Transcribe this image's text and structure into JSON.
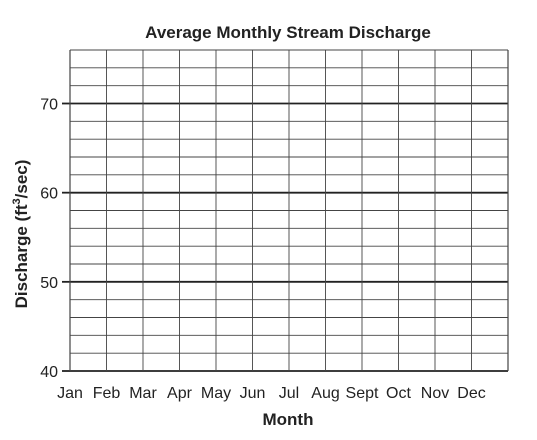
{
  "chart_data": {
    "type": "line",
    "title": "Average Monthly Stream Discharge",
    "xlabel": "Month",
    "ylabel": {
      "prefix": "Discharge (ft",
      "superscript": "3",
      "suffix": "/sec)"
    },
    "categories": [
      "Jan",
      "Feb",
      "Mar",
      "Apr",
      "May",
      "Jun",
      "Jul",
      "Aug",
      "Sept",
      "Oct",
      "Nov",
      "Dec"
    ],
    "series": [],
    "ylim": [
      40,
      76
    ],
    "yticks": [
      "40",
      "50",
      "60",
      "70"
    ],
    "grid": true,
    "minor_y_step": 2,
    "colors": {
      "major_grid": "#222222",
      "minor_grid": "#444444",
      "text": "#222222"
    }
  }
}
